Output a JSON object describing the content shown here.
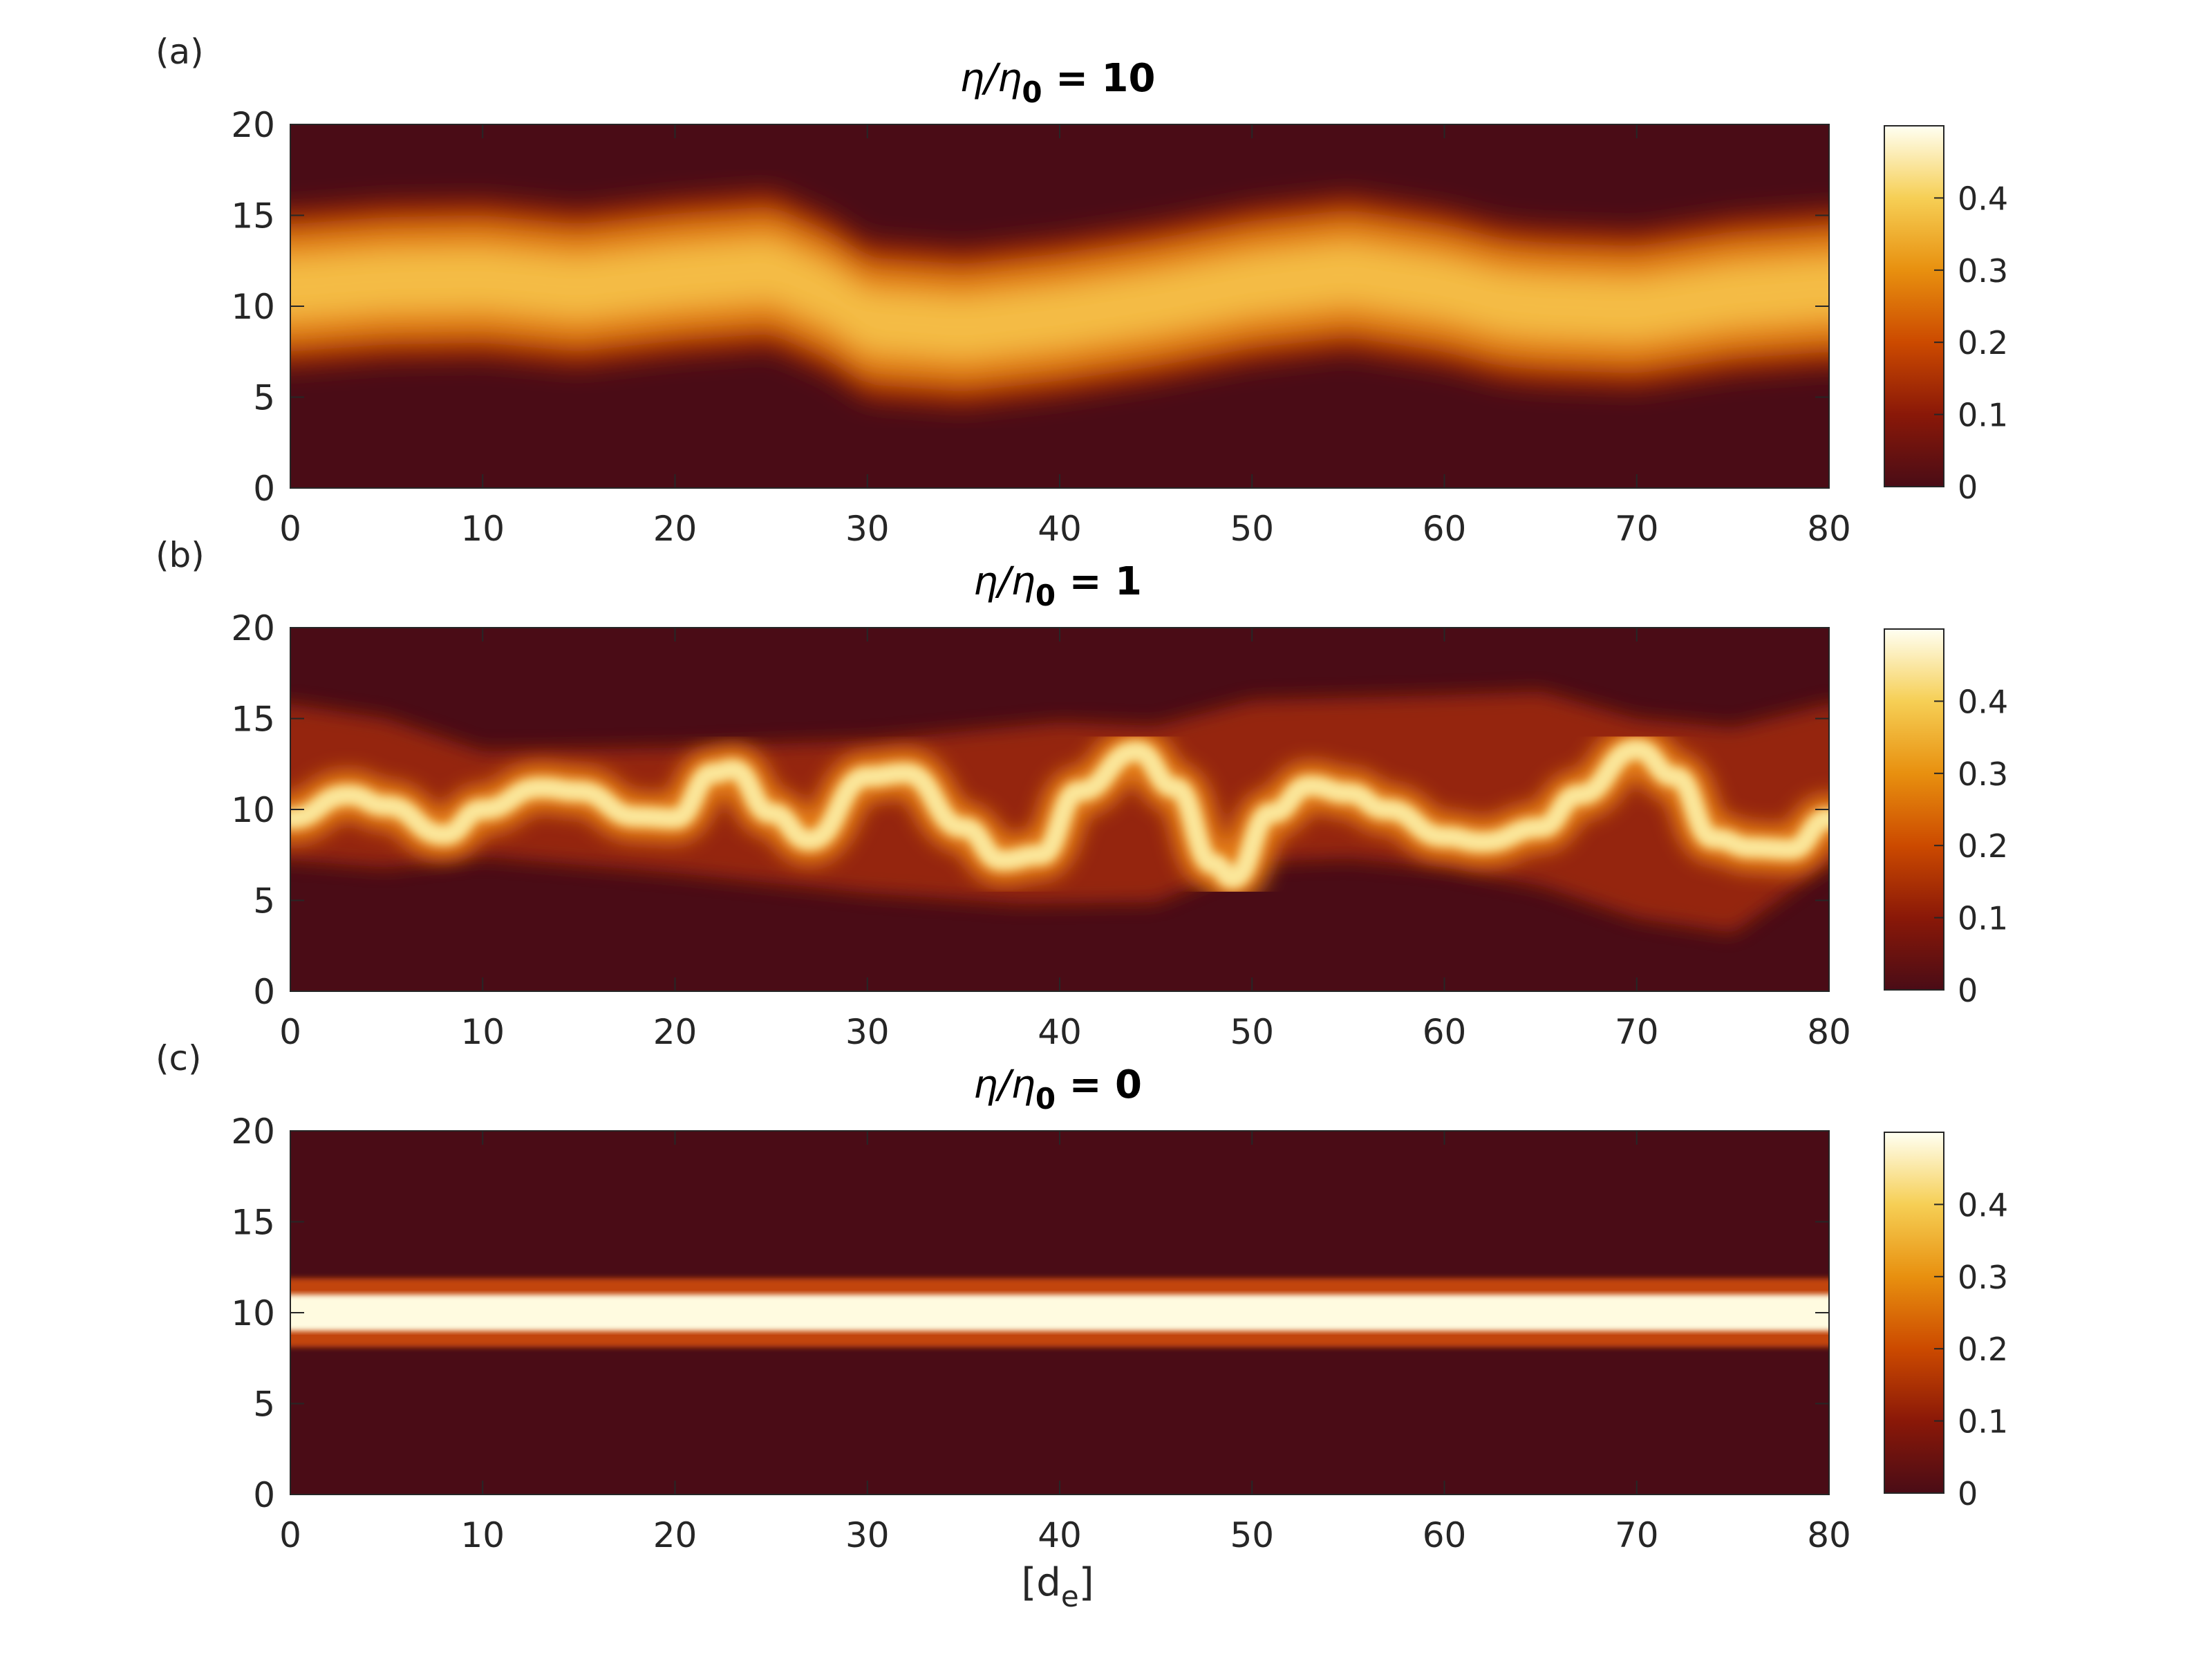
{
  "chart_data": [
    {
      "type": "heatmap",
      "panel_label": "(a)",
      "title_pre": "η/η",
      "title_sub": "0",
      "title_post": " = 10",
      "xlim": [
        0,
        80
      ],
      "ylim": [
        0,
        20
      ],
      "xticks": [
        "0",
        "10",
        "20",
        "30",
        "40",
        "50",
        "60",
        "70",
        "80"
      ],
      "yticks": [
        "0",
        "5",
        "10",
        "15",
        "20"
      ],
      "xlabel": "",
      "colorbar": {
        "range": [
          0,
          0.5
        ],
        "ticks": [
          "0",
          "0.1",
          "0.2",
          "0.3",
          "0.4"
        ]
      },
      "band": {
        "center_x": [
          0,
          5,
          10,
          15,
          20,
          25,
          28,
          30,
          35,
          40,
          45,
          50,
          55,
          60,
          63,
          65,
          70,
          75,
          80
        ],
        "center_y": [
          11,
          11.4,
          11.5,
          11,
          11.6,
          12,
          10.6,
          9.2,
          8.8,
          9.4,
          10.2,
          11.2,
          11.8,
          11,
          10.2,
          10,
          9.8,
          10.6,
          11
        ],
        "width": 3.2,
        "peak": 0.38
      }
    },
    {
      "type": "heatmap",
      "panel_label": "(b)",
      "title_pre": "η/η",
      "title_sub": "0",
      "title_post": " = 1",
      "xlim": [
        0,
        80
      ],
      "ylim": [
        0,
        20
      ],
      "xticks": [
        "0",
        "10",
        "20",
        "30",
        "40",
        "50",
        "60",
        "70",
        "80"
      ],
      "yticks": [
        "0",
        "5",
        "10",
        "15",
        "20"
      ],
      "xlabel": "",
      "colorbar": {
        "range": [
          0,
          0.5
        ],
        "ticks": [
          "0",
          "0.1",
          "0.2",
          "0.3",
          "0.4"
        ]
      },
      "bright_strand": {
        "x": [
          0,
          3,
          5,
          8,
          10,
          13,
          15,
          18,
          20,
          22,
          23,
          25,
          27,
          30,
          32,
          35,
          37,
          39,
          41,
          44,
          46,
          48,
          49,
          51,
          53,
          55,
          57,
          60,
          62,
          65,
          67,
          70,
          72,
          74,
          76,
          78,
          80
        ],
        "y": [
          9.5,
          10.8,
          10.2,
          8.6,
          10,
          11.2,
          11,
          9.6,
          9.5,
          12,
          12.2,
          9.8,
          8.3,
          11.8,
          12,
          9,
          7.2,
          7.5,
          11,
          13.2,
          11.2,
          7,
          6.2,
          9.8,
          11.3,
          10.9,
          10,
          8.5,
          8.2,
          9,
          10.8,
          13.3,
          11.8,
          8.4,
          7.9,
          7.8,
          9.5
        ]
      },
      "envelope_upper": {
        "x": [
          0,
          5,
          10,
          20,
          30,
          40,
          45,
          50,
          60,
          65,
          70,
          75,
          80
        ],
        "y": [
          15.8,
          15,
          13.2,
          13.4,
          13.8,
          14.8,
          14.6,
          16,
          16.3,
          16.5,
          15,
          14.5,
          15.8
        ]
      },
      "envelope_lower": {
        "x": [
          0,
          5,
          10,
          20,
          30,
          38,
          45,
          50,
          55,
          60,
          65,
          70,
          75,
          80
        ],
        "y": [
          7.2,
          6.8,
          7.4,
          6.5,
          5.4,
          4.8,
          4.9,
          7.1,
          7.3,
          6.8,
          5.8,
          4,
          3.2,
          7
        ]
      }
    },
    {
      "type": "heatmap",
      "panel_label": "(c)",
      "title_pre": "η/η",
      "title_sub": "0",
      "title_post": " = 0",
      "xlim": [
        0,
        80
      ],
      "ylim": [
        0,
        20
      ],
      "xticks": [
        "0",
        "10",
        "20",
        "30",
        "40",
        "50",
        "60",
        "70",
        "80"
      ],
      "yticks": [
        "0",
        "5",
        "10",
        "15",
        "20"
      ],
      "xlabel_main": "[d",
      "xlabel_sub": "e",
      "xlabel_post": "]",
      "colorbar": {
        "range": [
          0,
          0.5
        ],
        "ticks": [
          "0",
          "0.1",
          "0.2",
          "0.3",
          "0.4"
        ]
      },
      "band": {
        "center_y": 10,
        "width": 1.0,
        "peak": 0.5
      }
    }
  ]
}
